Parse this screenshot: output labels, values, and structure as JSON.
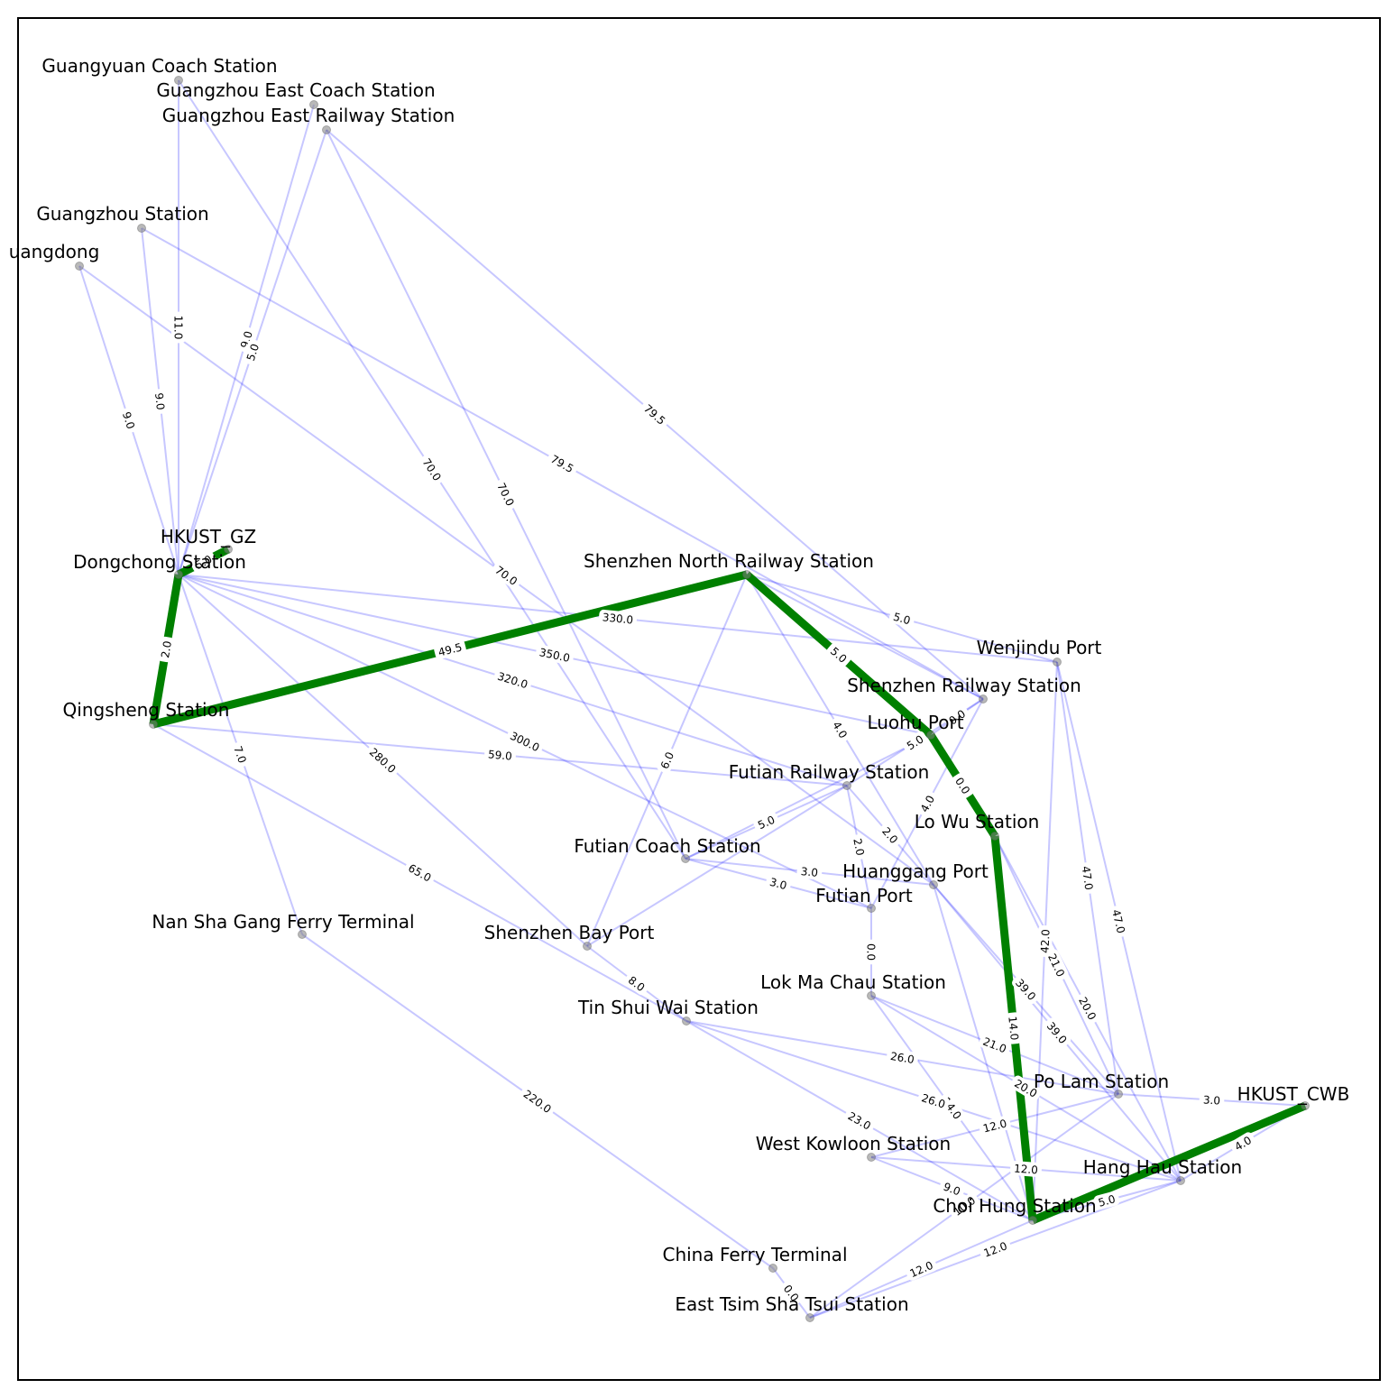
{
  "colors": {
    "edge": "#0000ff",
    "path": "#008000",
    "node": "#7f7f7f",
    "frame": "#000000"
  },
  "graph": {
    "nodes": [
      {
        "id": "gy",
        "label": "Guangyuan Coach Station"
      },
      {
        "id": "gec",
        "label": "Guangzhou East Coach Station"
      },
      {
        "id": "ger",
        "label": "Guangzhou East Railway Station"
      },
      {
        "id": "gzs",
        "label": "Guangzhou Station"
      },
      {
        "id": "gd",
        "label": "uangdong"
      },
      {
        "id": "hkgz",
        "label": "HKUST_GZ"
      },
      {
        "id": "dc",
        "label": "Dongchong Station"
      },
      {
        "id": "qs",
        "label": "Qingsheng Station"
      },
      {
        "id": "snr",
        "label": "Shenzhen North Railway Station"
      },
      {
        "id": "wj",
        "label": "Wenjindu Port"
      },
      {
        "id": "szr",
        "label": "Shenzhen Railway Station"
      },
      {
        "id": "lhp",
        "label": "Luohu Port"
      },
      {
        "id": "ftr",
        "label": "Futian Railway Station"
      },
      {
        "id": "lw",
        "label": "Lo Wu Station"
      },
      {
        "id": "ftc",
        "label": "Futian Coach Station"
      },
      {
        "id": "hgp",
        "label": "Huanggang Port"
      },
      {
        "id": "ftp",
        "label": "Futian Port"
      },
      {
        "id": "nsg",
        "label": "Nan Sha Gang Ferry Terminal"
      },
      {
        "id": "szb",
        "label": "Shenzhen Bay Port"
      },
      {
        "id": "lmc",
        "label": "Lok Ma Chau Station"
      },
      {
        "id": "tsw",
        "label": "Tin Shui Wai Station"
      },
      {
        "id": "pl",
        "label": "Po Lam Station"
      },
      {
        "id": "cwb",
        "label": "HKUST_CWB"
      },
      {
        "id": "wk",
        "label": "West Kowloon Station"
      },
      {
        "id": "hh",
        "label": "Hang Hau Station"
      },
      {
        "id": "ch",
        "label": "Choi Hung Station"
      },
      {
        "id": "cft",
        "label": "China Ferry Terminal"
      },
      {
        "id": "etst",
        "label": "East Tsim Sha Tsui Station"
      }
    ],
    "edges": [
      {
        "source": "gy",
        "target": "dc",
        "weight": "11.0"
      },
      {
        "source": "gy",
        "target": "ftc",
        "weight": "70.0"
      },
      {
        "source": "gec",
        "target": "dc",
        "weight": "9.0"
      },
      {
        "source": "ger",
        "target": "dc",
        "weight": "5.0"
      },
      {
        "source": "ger",
        "target": "ftc",
        "weight": "70.0"
      },
      {
        "source": "ger",
        "target": "szr",
        "weight": "79.5"
      },
      {
        "source": "gzs",
        "target": "dc",
        "weight": "9.0"
      },
      {
        "source": "gzs",
        "target": "szr",
        "weight": "79.5"
      },
      {
        "source": "gd",
        "target": "dc",
        "weight": "9.0"
      },
      {
        "source": "gd",
        "target": "hgp",
        "weight": "70.0"
      },
      {
        "source": "hkgz",
        "target": "dc",
        "weight": "5.0"
      },
      {
        "source": "dc",
        "target": "qs",
        "weight": "2.0"
      },
      {
        "source": "dc",
        "target": "wj",
        "weight": "330.0"
      },
      {
        "source": "dc",
        "target": "lhp",
        "weight": "350.0"
      },
      {
        "source": "dc",
        "target": "ftp",
        "weight": "300.0"
      },
      {
        "source": "dc",
        "target": "ftr",
        "weight": "320.0"
      },
      {
        "source": "dc",
        "target": "szb",
        "weight": "280.0"
      },
      {
        "source": "dc",
        "target": "nsg",
        "weight": "7.0"
      },
      {
        "source": "qs",
        "target": "snr",
        "weight": "49.5"
      },
      {
        "source": "qs",
        "target": "ftr",
        "weight": "59.0"
      },
      {
        "source": "qs",
        "target": "tsw",
        "weight": "65.0"
      },
      {
        "source": "snr",
        "target": "wj",
        "weight": "5.0"
      },
      {
        "source": "snr",
        "target": "lhp",
        "weight": "5.0"
      },
      {
        "source": "snr",
        "target": "szb",
        "weight": "6.0"
      },
      {
        "source": "snr",
        "target": "hgp",
        "weight": "4.0"
      },
      {
        "source": "snr",
        "target": "szr",
        "weight": ""
      },
      {
        "source": "szr",
        "target": "lhp",
        "weight": "0.0"
      },
      {
        "source": "szr",
        "target": "ftr",
        "weight": "5.0"
      },
      {
        "source": "szr",
        "target": "ftp",
        "weight": "4.0"
      },
      {
        "source": "lhp",
        "target": "lw",
        "weight": "0.0"
      },
      {
        "source": "lhp",
        "target": "ftc",
        "weight": ""
      },
      {
        "source": "ftr",
        "target": "ftp",
        "weight": "2.0"
      },
      {
        "source": "ftr",
        "target": "szb",
        "weight": ""
      },
      {
        "source": "ftr",
        "target": "hgp",
        "weight": "2.0"
      },
      {
        "source": "ftc",
        "target": "hgp",
        "weight": "3.0"
      },
      {
        "source": "ftc",
        "target": "ftp",
        "weight": "3.0"
      },
      {
        "source": "ftc",
        "target": "ftr",
        "weight": "5.0"
      },
      {
        "source": "ftp",
        "target": "lmc",
        "weight": "0.0"
      },
      {
        "source": "szb",
        "target": "tsw",
        "weight": "8.0"
      },
      {
        "source": "nsg",
        "target": "cft",
        "weight": "220.0"
      },
      {
        "source": "lw",
        "target": "ch",
        "weight": "14.0"
      },
      {
        "source": "lw",
        "target": "pl",
        "weight": "21.0"
      },
      {
        "source": "lw",
        "target": "hh",
        "weight": "20.0"
      },
      {
        "source": "wj",
        "target": "pl",
        "weight": "47.0"
      },
      {
        "source": "wj",
        "target": "hh",
        "weight": "47.0"
      },
      {
        "source": "wj",
        "target": "ch",
        "weight": "42.0"
      },
      {
        "source": "hgp",
        "target": "pl",
        "weight": "39.0"
      },
      {
        "source": "hgp",
        "target": "hh",
        "weight": "39.0"
      },
      {
        "source": "hgp",
        "target": "ch",
        "weight": ""
      },
      {
        "source": "lmc",
        "target": "pl",
        "weight": "21.0"
      },
      {
        "source": "lmc",
        "target": "hh",
        "weight": "20.0"
      },
      {
        "source": "lmc",
        "target": "ch",
        "weight": "14.0"
      },
      {
        "source": "tsw",
        "target": "pl",
        "weight": "26.0"
      },
      {
        "source": "tsw",
        "target": "hh",
        "weight": "26.0"
      },
      {
        "source": "tsw",
        "target": "ch",
        "weight": "23.0"
      },
      {
        "source": "wk",
        "target": "pl",
        "weight": "12.0"
      },
      {
        "source": "wk",
        "target": "hh",
        "weight": "12.0"
      },
      {
        "source": "wk",
        "target": "ch",
        "weight": "9.0"
      },
      {
        "source": "pl",
        "target": "cwb",
        "weight": "3.0"
      },
      {
        "source": "hh",
        "target": "cwb",
        "weight": "4.0"
      },
      {
        "source": "ch",
        "target": "hh",
        "weight": "5.0"
      },
      {
        "source": "ch",
        "target": "cwb",
        "weight": ""
      },
      {
        "source": "cft",
        "target": "etst",
        "weight": "0.0"
      },
      {
        "source": "etst",
        "target": "pl",
        "weight": "10.0"
      },
      {
        "source": "etst",
        "target": "hh",
        "weight": "12.0"
      },
      {
        "source": "etst",
        "target": "ch",
        "weight": "12.0"
      }
    ],
    "path": [
      "hkgz",
      "dc",
      "qs",
      "snr",
      "lhp",
      "lw",
      "ch",
      "cwb"
    ]
  }
}
